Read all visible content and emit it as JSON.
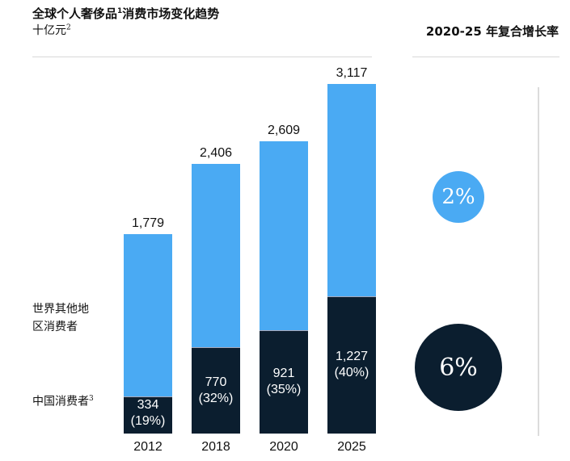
{
  "header": {
    "title": "全球个人奢侈品",
    "title_sup": "1",
    "title_rest": "消费市场变化趋势",
    "unit": "十亿元",
    "unit_sup": "2",
    "cagr_heading": "2020-25 年复合增长率"
  },
  "legend": {
    "rest_line1": "世界其他地",
    "rest_line2": "区消费者",
    "china": "中国消费者",
    "china_sup": "3"
  },
  "colors": {
    "rest": "#4aaaf3",
    "china": "#0b1e2f"
  },
  "chart_data": {
    "type": "bar",
    "stacked": true,
    "categories": [
      "2012",
      "2018",
      "2020",
      "2025"
    ],
    "totals": [
      1779,
      2406,
      2609,
      3117
    ],
    "total_labels": [
      "1,779",
      "2,406",
      "2,609",
      "3,117"
    ],
    "series": [
      {
        "name": "中国消费者",
        "values": [
          334,
          770,
          921,
          1227
        ],
        "labels": [
          "334",
          "770",
          "921",
          "1,227"
        ],
        "shares": [
          "(19%)",
          "(32%)",
          "(35%)",
          "(40%)"
        ]
      },
      {
        "name": "世界其他地区消费者",
        "values": [
          1445,
          1636,
          1688,
          1890
        ]
      }
    ],
    "ylim": [
      0,
      3117
    ]
  },
  "cagr": {
    "rest": "2%",
    "china": "6%"
  }
}
